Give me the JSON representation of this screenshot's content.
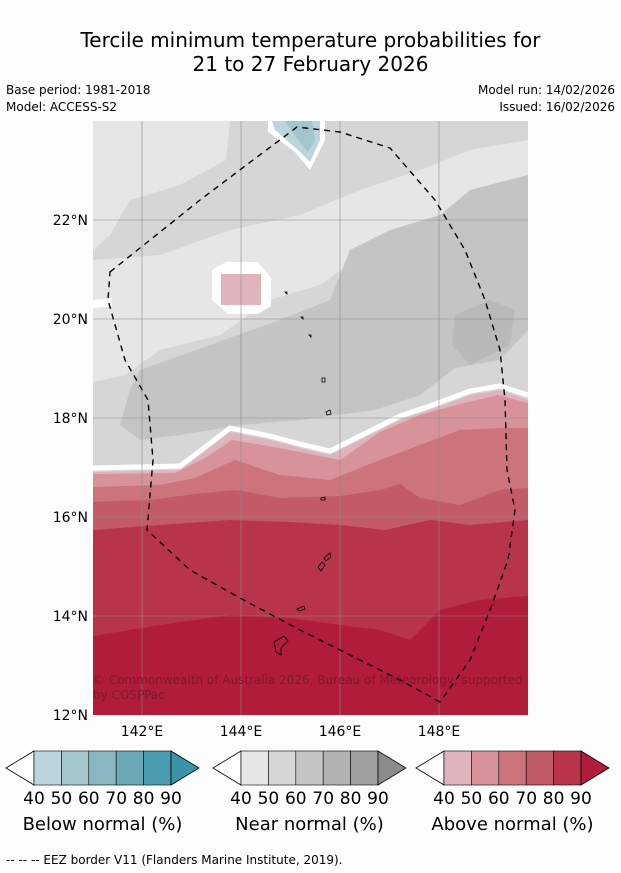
{
  "title": {
    "line1": "Tercile minimum temperature probabilities for",
    "line2": "21 to 27 February 2026"
  },
  "meta": {
    "base_period": "Base period: 1981-2018",
    "model": "Model: ACCESS-S2",
    "model_run": "Model run: 14/02/2026",
    "issued": "Issued: 16/02/2026"
  },
  "map": {
    "lat_labels": [
      "22°N",
      "20°N",
      "18°N",
      "16°N",
      "14°N",
      "12°N"
    ],
    "lon_labels": [
      "142°E",
      "144°E",
      "146°E",
      "148°E"
    ],
    "copyright_line1": "© Commonwealth of Australia 2026, Bureau of Meteorology, supported",
    "copyright_line2": "by COSPPac"
  },
  "colorbars": [
    {
      "title": "Below normal (%)",
      "ticks": [
        "40",
        "50",
        "60",
        "70",
        "80",
        "90"
      ],
      "colors": [
        "#bcd5dd",
        "#a3c6cd",
        "#88b7c2",
        "#6aa9b8",
        "#4a9db0",
        "#3a93a9"
      ]
    },
    {
      "title": "Near normal (%)",
      "ticks": [
        "40",
        "50",
        "60",
        "70",
        "80",
        "90"
      ],
      "colors": [
        "#e6e6e6",
        "#d6d6d6",
        "#c4c4c4",
        "#b2b2b2",
        "#9f9f9f",
        "#8b8b8b"
      ]
    },
    {
      "title": "Above normal (%)",
      "ticks": [
        "40",
        "50",
        "60",
        "70",
        "80",
        "90"
      ],
      "colors": [
        "#e0b4bd",
        "#d79399",
        "#cc737c",
        "#c35a67",
        "#b8344b",
        "#b01c39"
      ]
    }
  ],
  "footnote": "--  --  -- EEZ border V11 (Flanders Marine Institute, 2019)."
}
